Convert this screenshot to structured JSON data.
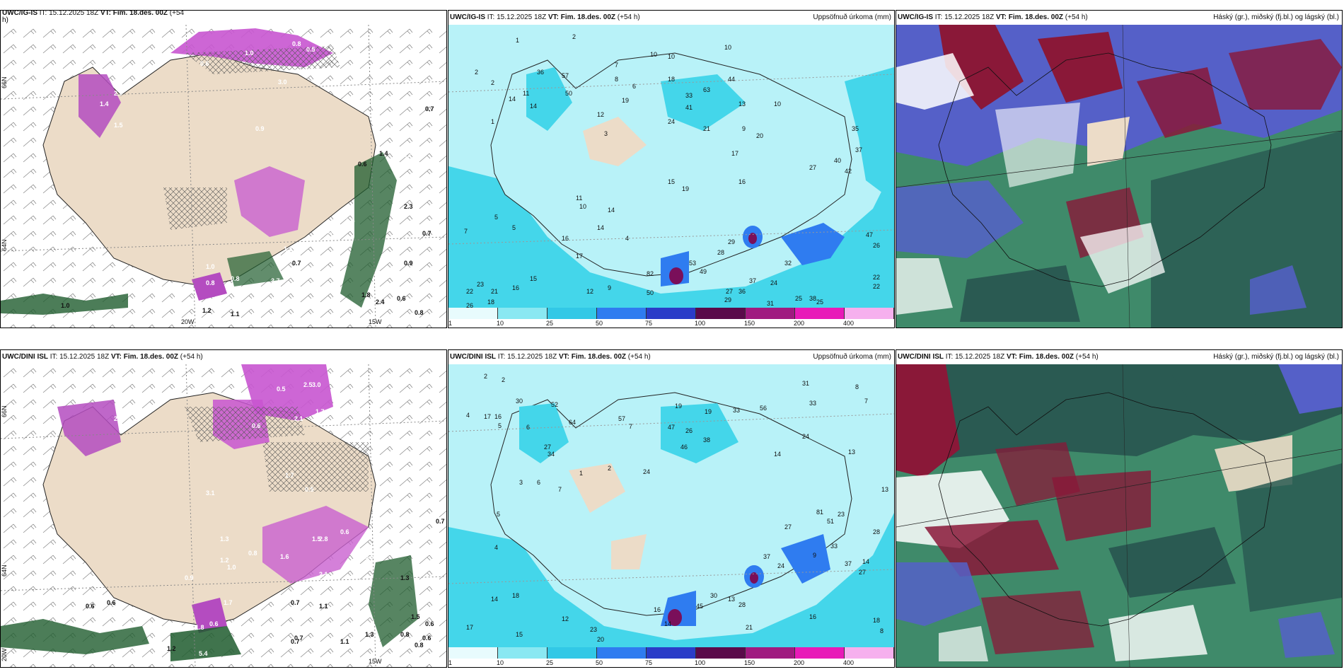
{
  "colors": {
    "land": "#ecdcc8",
    "precip_light": "#b8f2f8",
    "precip_mid": "#44d6ea",
    "precip_high": "#2f7cf0",
    "precip_max": "#7a0f5a",
    "pink": "#d46cd8",
    "green_dark": "#1f5c2e",
    "teal_dark": "#2a5a52",
    "cloud_high": "#8a1838",
    "cloud_mid": "#5560c8",
    "cloud_low": "#3f8a6a"
  },
  "panels": {
    "top_left": {
      "model": "UWC/IG-IS",
      "it_text": "IT: 15.12.2025 18Z",
      "vt_text": "VT: Fim. 18.des. 00Z",
      "lead": "(+54",
      "lead2": "h)",
      "lat_labels": [
        "66N",
        "64N"
      ],
      "lon_labels": [
        "20W",
        "15W"
      ],
      "values": [
        "1.0",
        "0.8",
        "0.5",
        "0.6",
        "2.9",
        "1.4",
        "1.5",
        "0.9",
        "3.0",
        "0.7",
        "1.3",
        "0.8",
        "1.0",
        "0.8",
        "3.7",
        "1.2",
        "1.1",
        "0.7",
        "3.5",
        "1.8",
        "1.0",
        "2.4",
        "0.6",
        "0.8",
        "2.1",
        "1.5",
        "0.6",
        "2.3",
        "1.4",
        "1.2",
        "0.9",
        "0.7"
      ]
    },
    "top_mid": {
      "model": "UWC/IG-IS",
      "it_text": "IT: 15.12.2025 18Z",
      "vt_text": "VT: Fim. 18.des. 00Z",
      "lead": "(+54 h)",
      "legend": "Uppsöfnuð úrkoma (mm)",
      "lat_labels": [
        "66N",
        "64N"
      ],
      "colorbar_labels": [
        "1",
        "10",
        "25",
        "50",
        "75",
        "100",
        "150",
        "200",
        "400"
      ],
      "values": [
        "1",
        "2",
        "2",
        "2",
        "11",
        "14",
        "3",
        "8",
        "36",
        "57",
        "50",
        "7",
        "6",
        "10",
        "10",
        "10",
        "19",
        "44",
        "13",
        "33",
        "41",
        "63",
        "18",
        "21",
        "9",
        "10",
        "12",
        "24",
        "35",
        "40",
        "37",
        "42",
        "27",
        "19",
        "14",
        "17",
        "16",
        "20",
        "15",
        "5",
        "7",
        "5",
        "14",
        "22",
        "4",
        "16",
        "82",
        "50",
        "53",
        "49",
        "29",
        "28",
        "37",
        "36",
        "27",
        "29",
        "31",
        "32",
        "47",
        "26",
        "38",
        "22",
        "25",
        "24",
        "26",
        "18",
        "21",
        "16",
        "9",
        "12",
        "15",
        "22",
        "23",
        "10",
        "11",
        "17",
        "14",
        "25",
        "1"
      ]
    },
    "top_right": {
      "model": "UWC/IG-IS",
      "it_text": "IT: 15.12.2025 18Z",
      "vt_text": "VT: Fim. 18.des. 00Z",
      "lead": "(+54 h)",
      "legend": "Háský (gr.), miðský (fj.bl.) og lágský (bl.)"
    },
    "bottom_left": {
      "model": "UWC/DINI ISL",
      "it_text": "IT: 15.12.2025 18Z",
      "vt_text": "VT: Fim. 18.des. 00Z",
      "lead": "(+54 h)",
      "lat_labels": [
        "66N",
        "64N",
        "20W"
      ],
      "lon_labels": [
        "15W"
      ],
      "values": [
        "2.5",
        "3.0",
        "0.5",
        "2.9",
        "2.1",
        "1.7",
        "0.6",
        "3.1",
        "0.5",
        "1.7",
        "1.3",
        "1.2",
        "1.0",
        "0.8",
        "1.6",
        "0.9",
        "2.8",
        "0.6",
        "1.7",
        "0.7",
        "1.8",
        "0.6",
        "0.6",
        "1.5",
        "2.1",
        "0.7",
        "1.1",
        "0.6",
        "3.6",
        "0.5",
        "1.3",
        "0.8",
        "0.7",
        "1.3",
        "1.2",
        "5.4",
        "0.6",
        "0.7",
        "1.5",
        "0.6",
        "0.8",
        "0.6",
        "1.1"
      ]
    },
    "bottom_mid": {
      "model": "UWC/DINI ISL",
      "it_text": "IT: 15.12.2025 18Z",
      "vt_text": "VT: Fim. 18.des. 00Z",
      "lead": "(+54 h)",
      "legend": "Uppsöfnuð úrkoma (mm)",
      "lat_labels": [
        "66N",
        "64N"
      ],
      "colorbar_labels": [
        "1",
        "10",
        "25",
        "50",
        "75",
        "100",
        "150",
        "200",
        "400"
      ],
      "values": [
        "2",
        "2",
        "4",
        "17",
        "16",
        "30",
        "5",
        "6",
        "27",
        "52",
        "34",
        "64",
        "57",
        "7",
        "19",
        "19",
        "33",
        "56",
        "47",
        "26",
        "38",
        "46",
        "24",
        "31",
        "33",
        "8",
        "7",
        "6",
        "3",
        "1",
        "2",
        "5",
        "4",
        "7",
        "13",
        "13",
        "14",
        "24",
        "81",
        "51",
        "23",
        "33",
        "9",
        "27",
        "37",
        "24",
        "37",
        "14",
        "28",
        "27",
        "13",
        "16",
        "14",
        "45",
        "30",
        "21",
        "28",
        "17",
        "20",
        "23",
        "14",
        "18",
        "12",
        "15",
        "16",
        "18",
        "8"
      ]
    },
    "bottom_right": {
      "model": "UWC/DINI ISL",
      "it_text": "IT: 15.12.2025 18Z",
      "vt_text": "VT: Fim. 18.des. 00Z",
      "lead": "(+54 h)",
      "legend": "Háský (gr.), miðský (fj.bl.) og lágský (bl.)"
    }
  }
}
